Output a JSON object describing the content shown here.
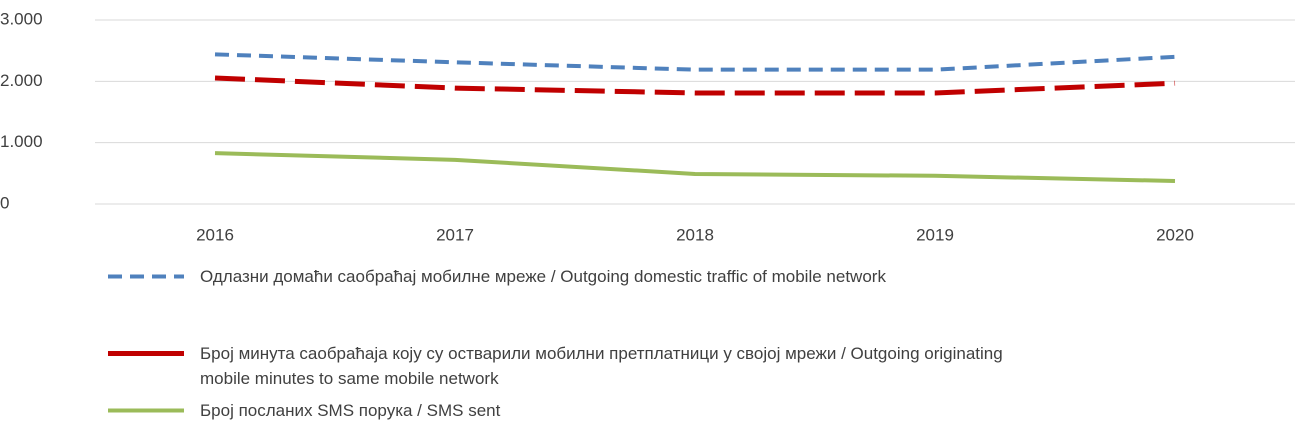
{
  "chart_data": {
    "type": "line",
    "categories": [
      "2016",
      "2017",
      "2018",
      "2019",
      "2020"
    ],
    "series": [
      {
        "name": "Одлазни домаћи саобраћај мобилне мреже / Outgoing domestic traffic of mobile network",
        "color": "#4f81bd",
        "dash": true,
        "values": [
          2440,
          2310,
          2190,
          2190,
          2400
        ]
      },
      {
        "name": "Број минута саобраћаја коју су остварили мобилни претплатници у својој мрежи / Outgoing originating mobile minutes to same mobile network",
        "color": "#c00000",
        "dash": true,
        "values": [
          2055,
          1890,
          1810,
          1810,
          1970
        ]
      },
      {
        "name": "Број посланих SMS порука / SMS sent",
        "color": "#9bbb59",
        "dash": false,
        "values": [
          830,
          720,
          490,
          460,
          375
        ]
      }
    ],
    "ylim": [
      0,
      3000
    ],
    "yticks": [
      0,
      {
        "value": 1000,
        "label": "1.000"
      },
      {
        "value": 2000,
        "label": "2.000"
      },
      {
        "value": 3000,
        "label": "3.000"
      }
    ],
    "grid": true,
    "legend": "bottom"
  }
}
